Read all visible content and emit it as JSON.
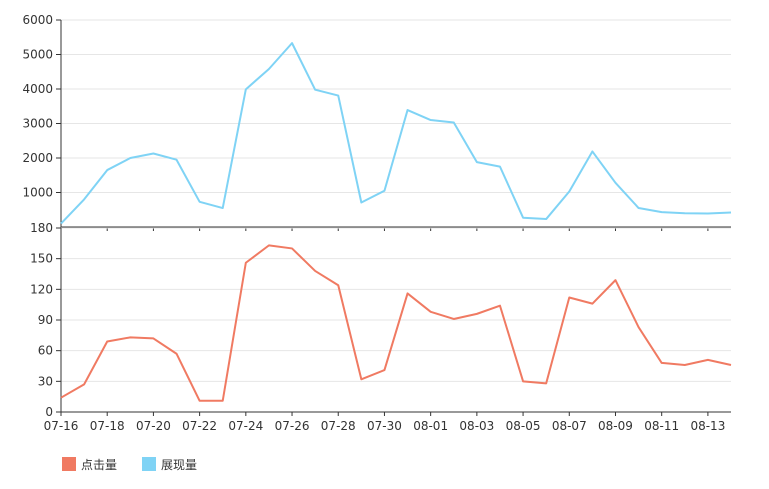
{
  "chart_data": [
    {
      "type": "line",
      "panel": "top",
      "x": [
        "07-16",
        "07-17",
        "07-18",
        "07-19",
        "07-20",
        "07-21",
        "07-22",
        "07-23",
        "07-24",
        "07-25",
        "07-26",
        "07-27",
        "07-28",
        "07-29",
        "07-30",
        "07-31",
        "08-01",
        "08-02",
        "08-03",
        "08-04",
        "08-05",
        "08-06",
        "08-07",
        "08-08",
        "08-09",
        "08-10",
        "08-11",
        "08-12",
        "08-13",
        "08-14"
      ],
      "series": [
        {
          "name": "展现量",
          "color": "#7fd3f5",
          "values": [
            100,
            800,
            1650,
            2000,
            2130,
            1950,
            730,
            550,
            3990,
            4580,
            5330,
            3980,
            3810,
            710,
            1050,
            3390,
            3100,
            3030,
            1880,
            1750,
            270,
            230,
            1030,
            2190,
            1280,
            550,
            430,
            400,
            390,
            420
          ]
        }
      ],
      "ylim": [
        0,
        6000
      ],
      "yticks": [
        1000,
        2000,
        3000,
        4000,
        5000,
        6000
      ],
      "grid": true
    },
    {
      "type": "line",
      "panel": "bottom",
      "x": [
        "07-16",
        "07-17",
        "07-18",
        "07-19",
        "07-20",
        "07-21",
        "07-22",
        "07-23",
        "07-24",
        "07-25",
        "07-26",
        "07-27",
        "07-28",
        "07-29",
        "07-30",
        "07-31",
        "08-01",
        "08-02",
        "08-03",
        "08-04",
        "08-05",
        "08-06",
        "08-07",
        "08-08",
        "08-09",
        "08-10",
        "08-11",
        "08-12",
        "08-13",
        "08-14"
      ],
      "series": [
        {
          "name": "点击量",
          "color": "#f07a62",
          "values": [
            14,
            27,
            69,
            73,
            72,
            57,
            11,
            11,
            146,
            163,
            160,
            138,
            124,
            32,
            41,
            116,
            98,
            91,
            96,
            104,
            30,
            28,
            112,
            106,
            129,
            83,
            48,
            46,
            51,
            46
          ]
        }
      ],
      "ylim": [
        0,
        180
      ],
      "yticks": [
        0,
        30,
        60,
        90,
        120,
        150,
        180
      ],
      "xticks": [
        "07-16",
        "07-18",
        "07-20",
        "07-22",
        "07-24",
        "07-26",
        "07-28",
        "07-30",
        "08-01",
        "08-03",
        "08-05",
        "08-07",
        "08-09",
        "08-11",
        "08-13"
      ],
      "grid": true
    }
  ],
  "legend": [
    {
      "label": "点击量",
      "color": "#f07a62"
    },
    {
      "label": "展现量",
      "color": "#7fd3f5"
    }
  ],
  "legend_position": "bottom-left"
}
